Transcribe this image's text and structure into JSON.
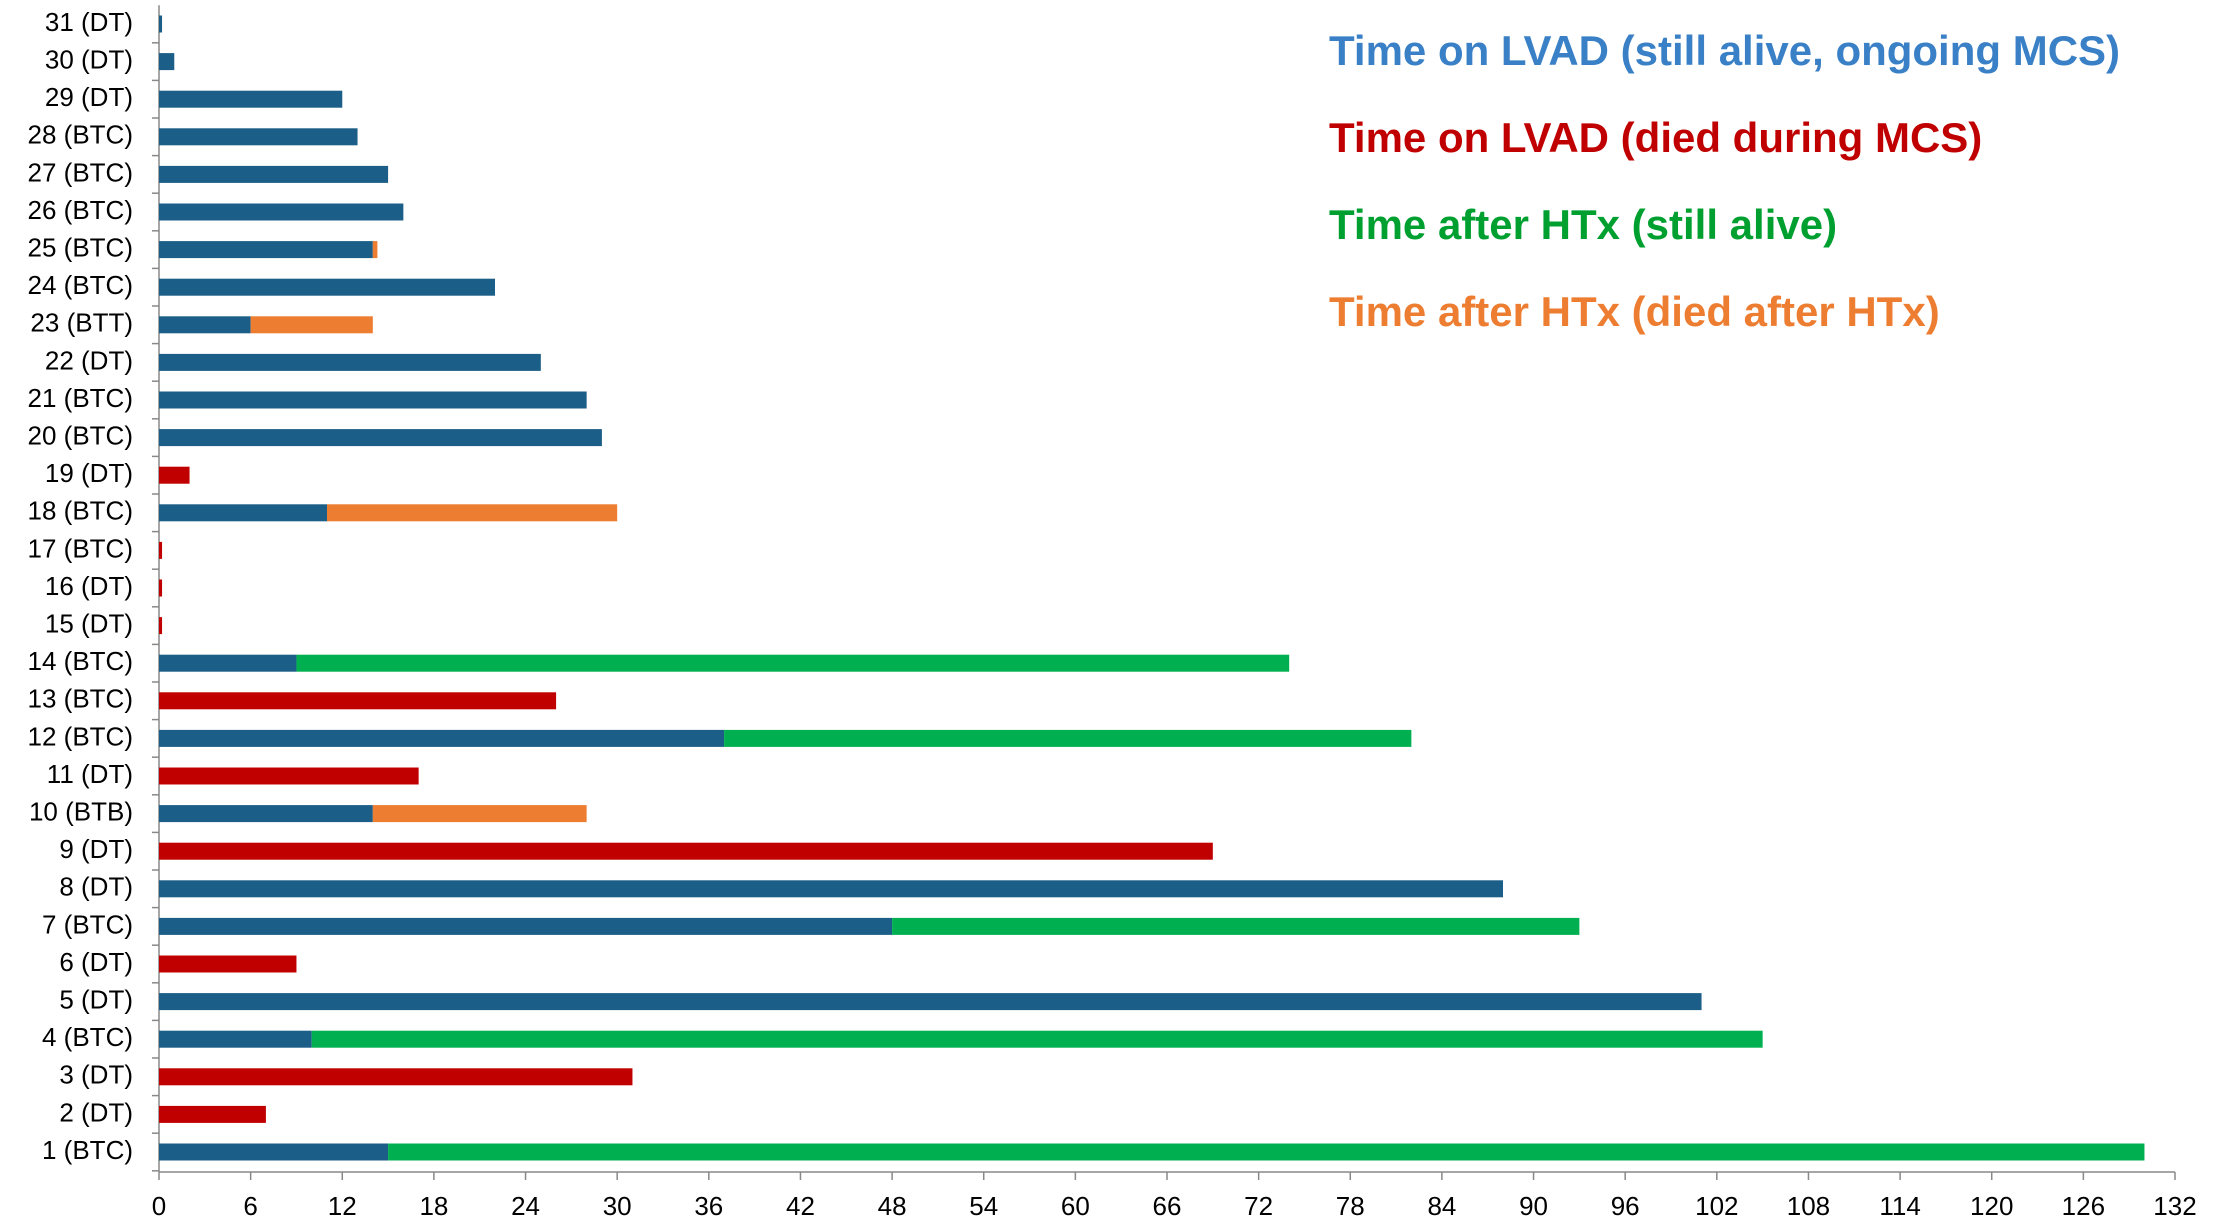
{
  "chart_data": {
    "type": "stacked_barh",
    "categories": [
      "1 (BTC)",
      "2 (DT)",
      "3 (DT)",
      "4 (BTC)",
      "5 (DT)",
      "6 (DT)",
      "7 (BTC)",
      "8 (DT)",
      "9 (DT)",
      "10 (BTB)",
      "11 (DT)",
      "12 (BTC)",
      "13 (BTC)",
      "14 (BTC)",
      "15 (DT)",
      "16 (DT)",
      "17 (BTC)",
      "18 (BTC)",
      "19 (DT)",
      "20 (BTC)",
      "21 (BTC)",
      "22 (DT)",
      "23 (BTT)",
      "24 (BTC)",
      "25 (BTC)",
      "26 (BTC)",
      "27 (BTC)",
      "28 (BTC)",
      "29 (DT)",
      "30 (DT)",
      "31 (DT)"
    ],
    "series": [
      {
        "name": "Time on LVAD (still alive, ongoing MCS)",
        "color": "#1b5e87",
        "label_color": "#3a80c6",
        "values": [
          15,
          null,
          null,
          10,
          101,
          null,
          48,
          88,
          null,
          14,
          null,
          37,
          null,
          9,
          null,
          null,
          null,
          11,
          null,
          29,
          28,
          25,
          6,
          22,
          14,
          16,
          15,
          13,
          12,
          1,
          0.2
        ]
      },
      {
        "name": "Time on LVAD (died during MCS)",
        "color": "#c00000",
        "label_color": "#c00000",
        "values": [
          null,
          7,
          31,
          null,
          null,
          9,
          null,
          null,
          69,
          null,
          17,
          null,
          26,
          null,
          0.2,
          0.2,
          0.2,
          null,
          2,
          null,
          null,
          null,
          null,
          null,
          null,
          null,
          null,
          null,
          null,
          null,
          null
        ]
      },
      {
        "name": "Time after HTx (still alive)",
        "color": "#00b050",
        "label_color": "#00a030",
        "values": [
          115,
          null,
          null,
          95,
          null,
          null,
          45,
          null,
          null,
          null,
          null,
          45,
          null,
          65,
          null,
          null,
          null,
          null,
          null,
          null,
          null,
          null,
          null,
          null,
          null,
          null,
          null,
          null,
          null,
          null,
          null
        ]
      },
      {
        "name": "Time after HTx (died after HTx)",
        "color": "#ed7d31",
        "label_color": "#ed7d31",
        "values": [
          null,
          null,
          null,
          null,
          null,
          null,
          null,
          null,
          null,
          14,
          null,
          null,
          null,
          null,
          null,
          null,
          null,
          19,
          null,
          null,
          null,
          null,
          8,
          null,
          0.3,
          null,
          null,
          null,
          null,
          null,
          null
        ]
      }
    ],
    "xlim": [
      0,
      132
    ],
    "xticks": [
      0,
      6,
      12,
      18,
      24,
      30,
      36,
      42,
      48,
      54,
      60,
      66,
      72,
      78,
      84,
      90,
      96,
      102,
      108,
      114,
      120,
      126,
      132
    ],
    "legend": "upper right"
  }
}
